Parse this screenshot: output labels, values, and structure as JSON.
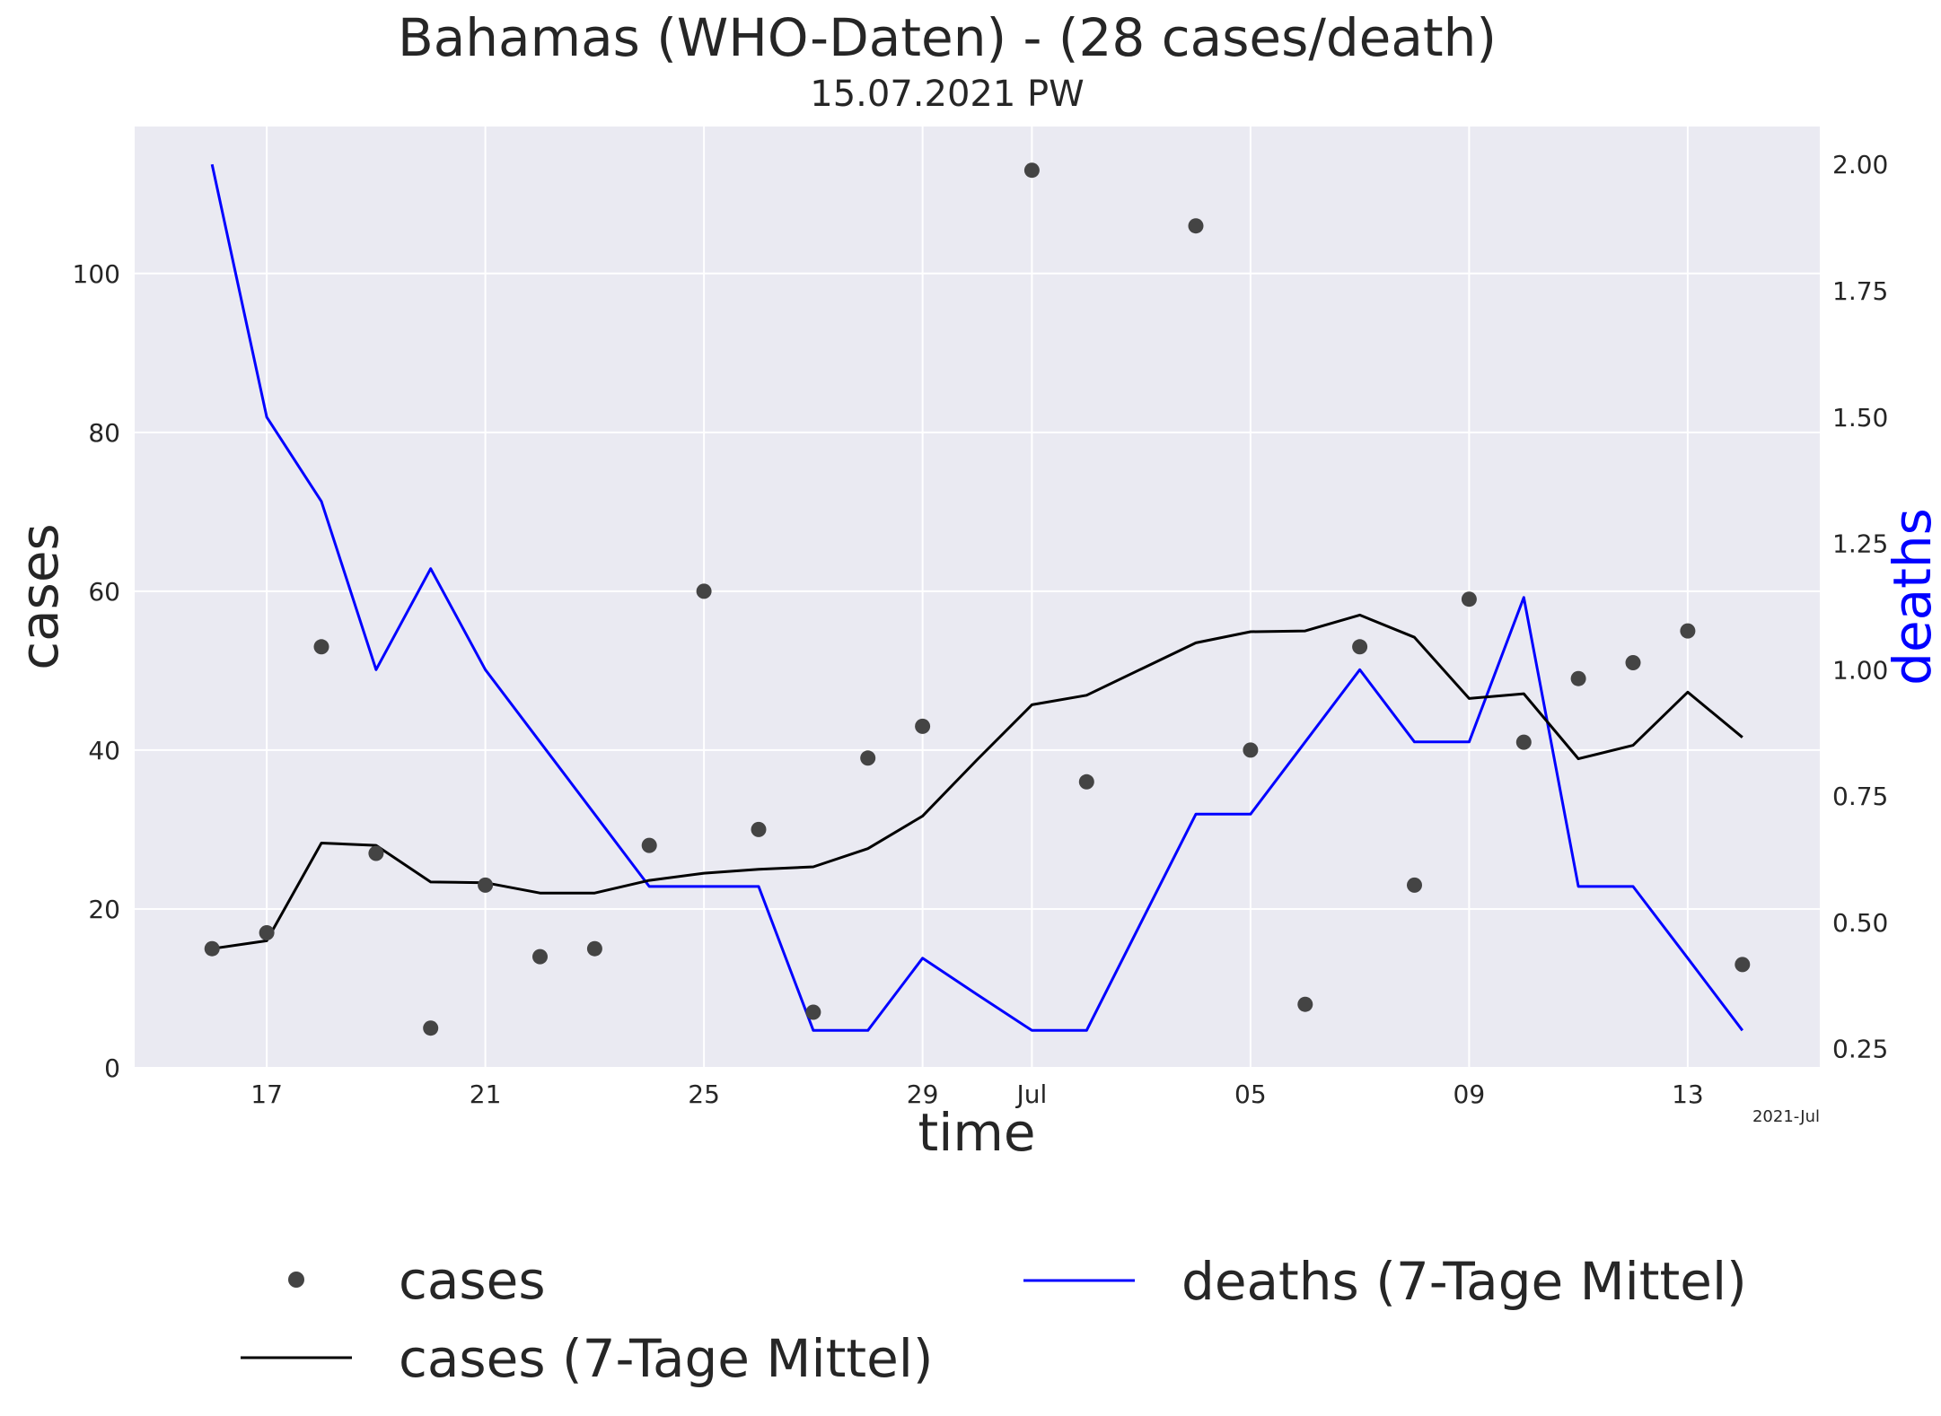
{
  "chart_data": {
    "type": "line",
    "title": "Bahamas (WHO-Daten) - (28 cases/death)",
    "subtitle": "15.07.2021 PW",
    "xlabel": "time",
    "ylabel_left": "cases",
    "ylabel_right": "deaths",
    "x_offset_label": "2021-Jul",
    "x": [
      "2021-06-16",
      "2021-06-17",
      "2021-06-18",
      "2021-06-19",
      "2021-06-20",
      "2021-06-21",
      "2021-06-22",
      "2021-06-23",
      "2021-06-24",
      "2021-06-25",
      "2021-06-26",
      "2021-06-27",
      "2021-06-28",
      "2021-06-29",
      "2021-06-30",
      "2021-07-01",
      "2021-07-02",
      "2021-07-03",
      "2021-07-04",
      "2021-07-05",
      "2021-07-06",
      "2021-07-07",
      "2021-07-08",
      "2021-07-09",
      "2021-07-10",
      "2021-07-11",
      "2021-07-12",
      "2021-07-13",
      "2021-07-14"
    ],
    "xlim": [
      "2021-06-14T14:00",
      "2021-07-15T10:00"
    ],
    "x_ticks": [
      {
        "date": "2021-06-17",
        "label": "17"
      },
      {
        "date": "2021-06-21",
        "label": "21"
      },
      {
        "date": "2021-06-25",
        "label": "25"
      },
      {
        "date": "2021-06-29",
        "label": "29"
      },
      {
        "date": "2021-07-01",
        "label": "Jul"
      },
      {
        "date": "2021-07-05",
        "label": "05"
      },
      {
        "date": "2021-07-09",
        "label": "09"
      },
      {
        "date": "2021-07-13",
        "label": "13"
      }
    ],
    "ylim_left": [
      0,
      118.5
    ],
    "yticks_left": [
      0,
      20,
      40,
      60,
      80,
      100
    ],
    "ylim_right": [
      0.212,
      2.075
    ],
    "yticks_right": [
      "0.25",
      "0.50",
      "0.75",
      "1.00",
      "1.25",
      "1.50",
      "1.75",
      "2.00"
    ],
    "grid": true,
    "legend_position": "bottom",
    "series": [
      {
        "name": "cases",
        "kind": "scatter",
        "axis": "left",
        "color": "#444444",
        "values": [
          15,
          17,
          53,
          27,
          5,
          23,
          14,
          15,
          28,
          60,
          30,
          7,
          39,
          43,
          null,
          113,
          36,
          null,
          106,
          40,
          8,
          53,
          23,
          59,
          41,
          49,
          51,
          55,
          13
        ]
      },
      {
        "name": "cases (7-Tage Mittel)",
        "kind": "line",
        "axis": "left",
        "color": "#000000",
        "values": [
          15,
          16,
          28.3,
          28,
          23.4,
          23.3,
          22,
          22,
          23.6,
          24.5,
          25,
          25.3,
          27.6,
          31.7,
          38.8,
          45.7,
          46.9,
          50.2,
          53.5,
          54.9,
          55,
          57,
          54.2,
          46.5,
          47.1,
          38.9,
          40.6,
          47.3,
          41.6
        ]
      },
      {
        "name": "deaths (7-Tage Mittel)",
        "kind": "line",
        "axis": "right",
        "color": "#0000ff",
        "values": [
          2.0,
          1.5,
          1.333,
          1.0,
          1.2,
          1.0,
          0.857,
          0.714,
          0.571,
          0.571,
          0.571,
          0.286,
          0.286,
          0.429,
          0.357,
          0.286,
          0.286,
          0.5,
          0.714,
          0.714,
          0.857,
          1.0,
          0.857,
          0.857,
          1.143,
          0.571,
          0.571,
          0.429,
          0.286
        ]
      }
    ]
  }
}
